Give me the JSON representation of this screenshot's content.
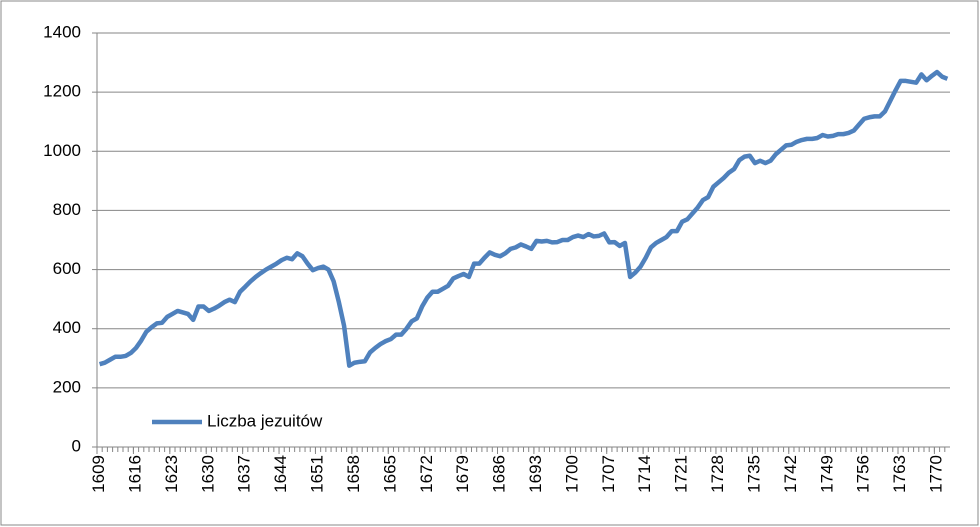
{
  "chart_data": {
    "type": "line",
    "x": [
      1609,
      1610,
      1611,
      1612,
      1613,
      1614,
      1615,
      1616,
      1617,
      1618,
      1619,
      1620,
      1621,
      1622,
      1623,
      1624,
      1625,
      1626,
      1627,
      1628,
      1629,
      1630,
      1631,
      1632,
      1633,
      1634,
      1635,
      1636,
      1637,
      1638,
      1639,
      1640,
      1641,
      1642,
      1643,
      1644,
      1645,
      1646,
      1647,
      1648,
      1649,
      1650,
      1651,
      1652,
      1653,
      1654,
      1655,
      1656,
      1657,
      1658,
      1659,
      1660,
      1661,
      1662,
      1663,
      1664,
      1665,
      1666,
      1667,
      1668,
      1669,
      1670,
      1671,
      1672,
      1673,
      1674,
      1675,
      1676,
      1677,
      1678,
      1679,
      1680,
      1681,
      1682,
      1683,
      1684,
      1685,
      1686,
      1687,
      1688,
      1689,
      1690,
      1691,
      1692,
      1693,
      1694,
      1695,
      1696,
      1697,
      1698,
      1699,
      1700,
      1701,
      1702,
      1703,
      1704,
      1705,
      1706,
      1707,
      1708,
      1709,
      1710,
      1711,
      1712,
      1713,
      1714,
      1715,
      1716,
      1717,
      1718,
      1719,
      1720,
      1721,
      1722,
      1723,
      1724,
      1725,
      1726,
      1727,
      1728,
      1729,
      1730,
      1731,
      1732,
      1733,
      1734,
      1735,
      1736,
      1737,
      1738,
      1739,
      1740,
      1741,
      1742,
      1743,
      1744,
      1745,
      1746,
      1747,
      1748,
      1749,
      1750,
      1751,
      1752,
      1753,
      1754,
      1755,
      1756,
      1757,
      1758,
      1759,
      1760,
      1761,
      1762,
      1763,
      1764,
      1765,
      1766,
      1767,
      1768,
      1769,
      1770,
      1771,
      1772
    ],
    "series": [
      {
        "name": "Liczba jezuitów",
        "color": "#4f81bd",
        "values": [
          280,
          285,
          295,
          305,
          305,
          308,
          318,
          335,
          360,
          390,
          405,
          418,
          420,
          440,
          450,
          460,
          455,
          450,
          430,
          475,
          475,
          460,
          468,
          478,
          490,
          498,
          490,
          525,
          542,
          560,
          575,
          588,
          600,
          610,
          620,
          632,
          640,
          635,
          655,
          645,
          620,
          598,
          605,
          610,
          600,
          560,
          490,
          410,
          275,
          285,
          288,
          290,
          320,
          335,
          348,
          358,
          365,
          380,
          380,
          400,
          425,
          435,
          475,
          505,
          525,
          525,
          535,
          545,
          570,
          578,
          585,
          575,
          620,
          620,
          640,
          658,
          650,
          645,
          655,
          670,
          675,
          685,
          678,
          670,
          697,
          695,
          697,
          692,
          693,
          700,
          700,
          710,
          715,
          710,
          720,
          712,
          714,
          722,
          692,
          693,
          680,
          690,
          575,
          590,
          610,
          640,
          675,
          690,
          700,
          710,
          730,
          730,
          762,
          770,
          790,
          810,
          835,
          845,
          880,
          895,
          910,
          928,
          940,
          970,
          982,
          985,
          960,
          968,
          960,
          968,
          990,
          1005,
          1020,
          1022,
          1032,
          1038,
          1042,
          1042,
          1045,
          1055,
          1050,
          1052,
          1058,
          1058,
          1062,
          1070,
          1090,
          1110,
          1115,
          1118,
          1118,
          1135,
          1170,
          1205,
          1238,
          1238,
          1235,
          1232,
          1260,
          1240,
          1255,
          1268,
          1252,
          1245
        ]
      }
    ],
    "xlim": [
      1608.5,
      1772.5
    ],
    "xticks": [
      1609,
      1616,
      1623,
      1630,
      1637,
      1644,
      1651,
      1658,
      1665,
      1672,
      1679,
      1686,
      1693,
      1700,
      1707,
      1714,
      1721,
      1728,
      1735,
      1742,
      1749,
      1756,
      1763,
      1770
    ],
    "ylim": [
      0,
      1400
    ],
    "yticks": [
      0,
      200,
      400,
      600,
      800,
      1000,
      1200,
      1400
    ],
    "grid": true,
    "legend": "lower left"
  }
}
